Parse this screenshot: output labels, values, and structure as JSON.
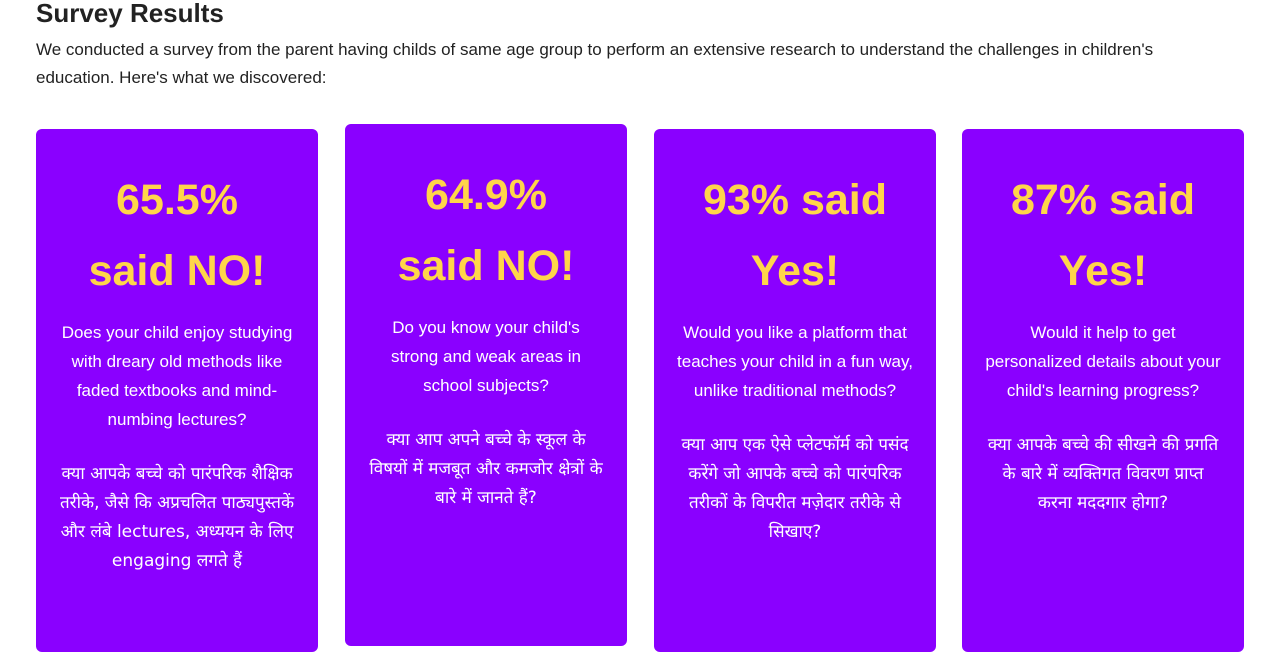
{
  "section": {
    "title": "Survey Results",
    "intro": "We conducted a survey from the parent having childs of same age group to perform an extensive research to understand the challenges in children's education. Here's what we discovered:"
  },
  "cards": [
    {
      "stat_line1": "65.5%",
      "stat_line2": "said NO!",
      "question_en": "Does your child enjoy studying with dreary old methods like faded textbooks and mind-numbing lectures?",
      "question_hi": "क्या आपके बच्चे को पारंपरिक शैक्षिक तरीके, जैसे कि अप्रचलित पाठ्यपुस्तकें और लंबे lectures, अध्ययन के लिए engaging लगते हैं"
    },
    {
      "stat_line1": "64.9%",
      "stat_line2": "said NO!",
      "question_en": "Do you know your child's strong and weak areas in school subjects?",
      "question_hi": "क्या आप अपने बच्चे के स्कूल के विषयों में मजबूत और कमजोर क्षेत्रों के बारे में जानते हैं?"
    },
    {
      "stat_line1": "93% said",
      "stat_line2": "Yes!",
      "question_en": "Would you like a platform that teaches your child in a fun way, unlike traditional methods?",
      "question_hi": "क्या आप एक ऐसे प्लेटफॉर्म को पसंद करेंगे जो आपके बच्चे को पारंपरिक तरीकों के विपरीत मज़ेदार तरीके से सिखाए?"
    },
    {
      "stat_line1": "87% said",
      "stat_line2": "Yes!",
      "question_en": "Would it help to get personalized details about your child's learning progress?",
      "question_hi": "क्या आपके बच्चे की सीखने की प्रगति के बारे में व्यक्तिगत विवरण प्राप्त करना मददगार होगा?"
    }
  ],
  "colors": {
    "card_background": "#8a00ff",
    "stat_text": "#ffd54a",
    "body_text": "#ffffff"
  }
}
